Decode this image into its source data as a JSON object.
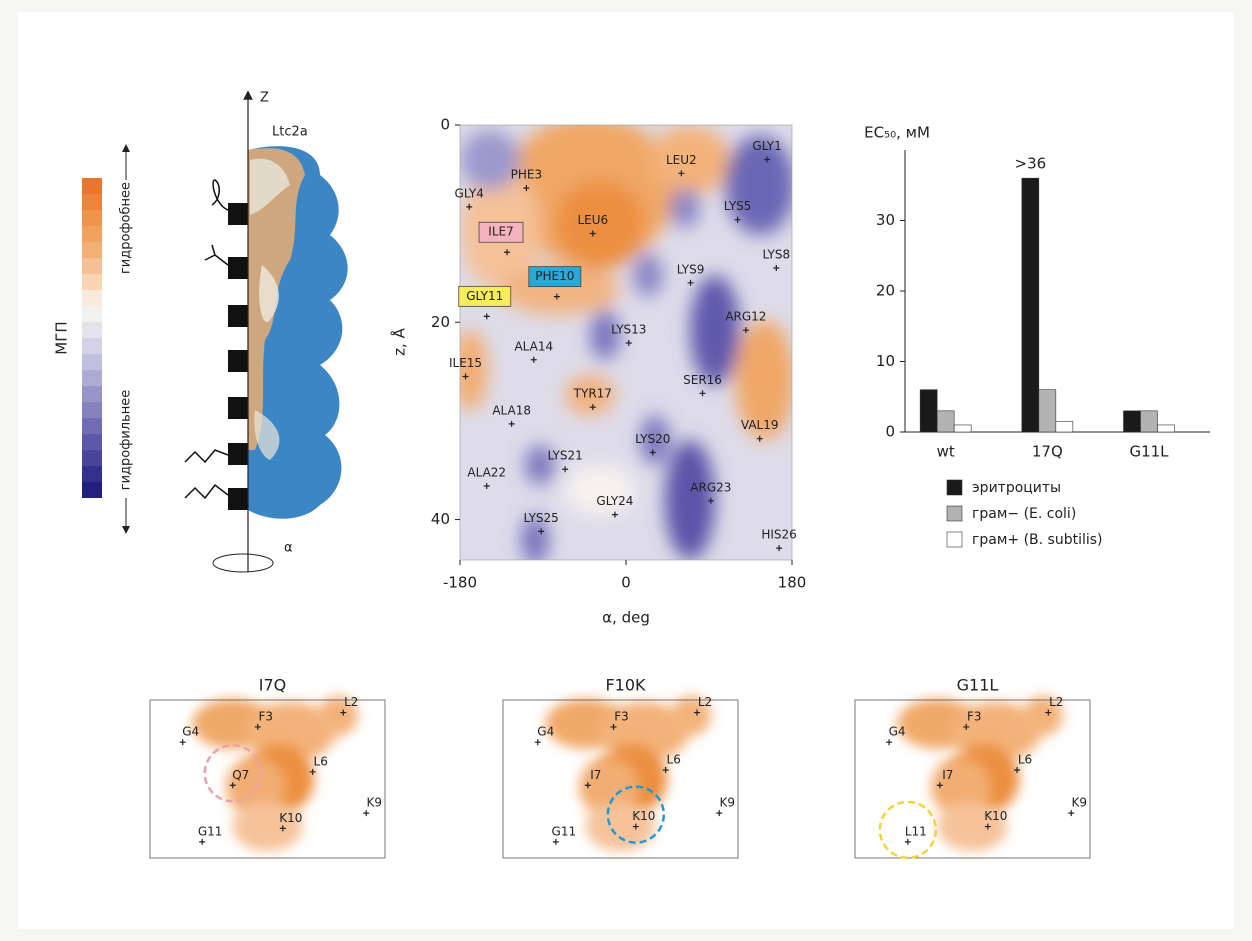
{
  "scale": {
    "title": "МГП",
    "top": "гидрофобнее",
    "bottom": "гидрофильнее"
  },
  "model": {
    "title": "Ltc2a",
    "axis": "Z",
    "angle": "α"
  },
  "chart_data": [
    {
      "type": "map",
      "xlabel": "α, deg",
      "ylabel": "z, Å",
      "xlim": [
        -180,
        180
      ],
      "ylim": [
        0,
        44
      ],
      "y_inverted": true,
      "xticks": [
        -180,
        0,
        180
      ],
      "yticks": [
        0,
        20,
        40
      ],
      "labels": [
        "GLY1",
        "LEU2",
        "PHE3",
        "GLY4",
        "LYS5",
        "LEU6",
        "ILE7",
        "LYS8",
        "LYS9",
        "PHE10",
        "GLY11",
        "ARG12",
        "LYS13",
        "ALA14",
        "ILE15",
        "SER16",
        "TYR17",
        "ALA18",
        "VAL19",
        "LYS20",
        "LYS21",
        "ALA22",
        "ARG23",
        "GLY24",
        "LYS25",
        "HIS26"
      ],
      "x": [
        153,
        60,
        -108,
        -170,
        121,
        -36,
        -129,
        163,
        70,
        -75,
        -151,
        130,
        3,
        -100,
        -174,
        83,
        -36,
        -124,
        145,
        29,
        -66,
        -151,
        92,
        -12,
        -92,
        166
      ],
      "y": [
        3.5,
        4.9,
        6.4,
        8.3,
        9.6,
        11,
        12.9,
        14.5,
        16,
        17.4,
        19.4,
        20.8,
        22.1,
        23.8,
        25.5,
        27.2,
        28.6,
        30.3,
        31.8,
        33.2,
        34.9,
        36.6,
        38.1,
        39.5,
        41.2,
        42.9
      ],
      "label_box_colors": [
        null,
        null,
        null,
        null,
        null,
        null,
        "#f4b4bd",
        null,
        null,
        "#29a9d6",
        "#f7ec5a",
        null,
        null,
        null,
        null,
        null,
        null,
        null,
        null,
        null,
        null,
        null,
        null,
        null,
        null,
        null
      ]
    },
    {
      "type": "bar",
      "ylabel": "EC₅₀, мМ",
      "categories": [
        "wt",
        "17Q",
        "G11L"
      ],
      "ylim": [
        0,
        40
      ],
      "yticks": [
        0,
        10,
        20,
        30
      ],
      "series": [
        {
          "name": "эритроциты",
          "color": "#1a1a1a",
          "values": [
            6,
            36,
            3
          ],
          "value_labels": [
            null,
            ">36",
            null
          ]
        },
        {
          "name": "грам− (E. coli)",
          "color": "#b3b3b3",
          "values": [
            3,
            6,
            3
          ]
        },
        {
          "name": "грам+ (B. subtilis)",
          "color": "#ffffff",
          "values": [
            1,
            1.5,
            1
          ]
        }
      ]
    },
    {
      "type": "panel",
      "title": "I7Q",
      "xlim": [
        -220,
        118
      ],
      "ylim": [
        3.6,
        21.2
      ],
      "y_inverted": true,
      "labels": [
        "G4",
        "F3",
        "L2",
        "Q7",
        "L6",
        "K10",
        "K9",
        "G11"
      ],
      "x": [
        -173,
        -65,
        58,
        -101,
        14,
        -29,
        91,
        -145
      ],
      "y": [
        8.3,
        6.6,
        5.0,
        13.1,
        11.6,
        17.9,
        16.2,
        19.4
      ],
      "highlight": 3,
      "highlight_color": "#e9a3ac"
    },
    {
      "type": "panel",
      "title": "F10K",
      "xlim": [
        -220,
        118
      ],
      "ylim": [
        3.6,
        21.2
      ],
      "y_inverted": true,
      "labels": [
        "G4",
        "F3",
        "L2",
        "I7",
        "L6",
        "K10",
        "K9",
        "G11"
      ],
      "x": [
        -170,
        -61,
        59,
        -98,
        14,
        -29,
        91,
        -144
      ],
      "y": [
        8.3,
        6.6,
        5.0,
        13.1,
        11.4,
        17.7,
        16.2,
        19.4
      ],
      "highlight": 5,
      "highlight_color": "#1e9bd7"
    },
    {
      "type": "panel",
      "title": "G11L",
      "xlim": [
        -220,
        118
      ],
      "ylim": [
        3.6,
        21.2
      ],
      "y_inverted": true,
      "labels": [
        "G4",
        "F3",
        "L2",
        "I7",
        "L6",
        "K10",
        "K9",
        "L11"
      ],
      "x": [
        -171,
        -60,
        58,
        -98,
        13,
        -29,
        91,
        -144
      ],
      "y": [
        8.3,
        6.6,
        5.0,
        13.1,
        11.4,
        17.7,
        16.2,
        19.4
      ],
      "highlight": 7,
      "highlight_color": "#f3d23a"
    }
  ]
}
